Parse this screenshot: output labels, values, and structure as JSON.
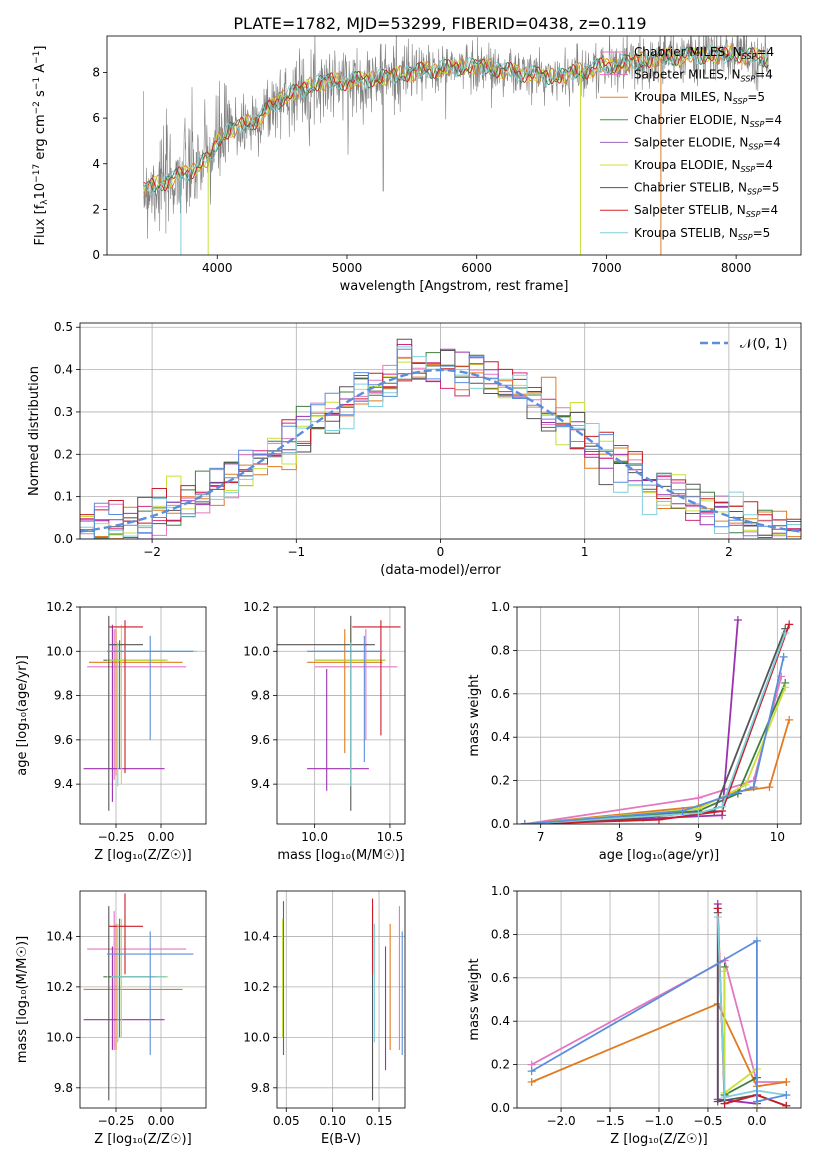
{
  "figure": {
    "title": "PLATE=1782, MJD=53299, FIBERID=0438, z=0.119"
  },
  "legend_entries": [
    {
      "pre": "Chabrier MILES, N",
      "sub": "SSP",
      "post": "=4",
      "color": "#e377c2"
    },
    {
      "pre": "Salpeter MILES, N",
      "sub": "SSP",
      "post": "=4",
      "color": "#e377c2"
    },
    {
      "pre": "Kroupa MILES, N",
      "sub": "SSP",
      "post": "=5",
      "color": "#ff7f0e"
    },
    {
      "pre": "Chabrier ELODIE, N",
      "sub": "SSP",
      "post": "=4",
      "color": "#2ca02c"
    },
    {
      "pre": "Salpeter ELODIE, N",
      "sub": "SSP",
      "post": "=4",
      "color": "#9467bd"
    },
    {
      "pre": "Kroupa ELODIE, N",
      "sub": "SSP",
      "post": "=4",
      "color": "#dbdb3d"
    },
    {
      "pre": "Chabrier STELIB, N",
      "sub": "SSP",
      "post": "=5",
      "color": "#555555"
    },
    {
      "pre": "Salpeter STELIB, N",
      "sub": "SSP",
      "post": "=4",
      "color": "#d62728"
    },
    {
      "pre": "Kroupa STELIB, N",
      "sub": "SSP",
      "post": "=5",
      "color": "#7fd0dc"
    }
  ],
  "colors": {
    "chabrier_miles": "#e377c2",
    "salpeter_miles": "#d6277f",
    "kroupa_miles": "#e07b20",
    "chabrier_elodie": "#3f7f3f",
    "salpeter_elodie": "#9b30b0",
    "kroupa_elodie": "#c8e03a",
    "chabrier_stelib": "#555555",
    "salpeter_stelib": "#c81e28",
    "kroupa_stelib": "#7fd0dc",
    "blue": "#5b8ddb",
    "data": "#808080"
  },
  "chart_data": [
    {
      "id": "spectrum",
      "type": "line",
      "xlabel": "wavelength [Angstrom, rest frame]",
      "ylabel_pre": "Flux [f",
      "ylabel_sub": "λ",
      "ylabel_mid": "10",
      "ylabel_sup1": "−17",
      "ylabel_mid2": " erg cm",
      "ylabel_sup2": "−2",
      "ylabel_mid3": " s",
      "ylabel_sup3": "−1",
      "ylabel_mid4": " A",
      "ylabel_sup4": "−1",
      "ylabel_end": "]",
      "xlim": [
        3150,
        8500
      ],
      "ylim": [
        0,
        9.6
      ],
      "xticks": [
        "4000",
        "5000",
        "6000",
        "7000",
        "8000"
      ],
      "xtick_values": [
        4000,
        5000,
        6000,
        7000,
        8000
      ],
      "yticks": [
        "0",
        "2",
        "4",
        "6",
        "8"
      ],
      "ytick_values": [
        0,
        2,
        4,
        6,
        8
      ],
      "continuum": [
        [
          3430,
          2.9
        ],
        [
          3600,
          3.2
        ],
        [
          3800,
          3.7
        ],
        [
          3950,
          4.3
        ],
        [
          4000,
          5.0
        ],
        [
          4100,
          5.5
        ],
        [
          4300,
          5.9
        ],
        [
          4500,
          6.9
        ],
        [
          4800,
          7.6
        ],
        [
          5000,
          7.6
        ],
        [
          5300,
          7.8
        ],
        [
          5600,
          8.1
        ],
        [
          6000,
          8.3
        ],
        [
          6300,
          8.0
        ],
        [
          6600,
          7.8
        ],
        [
          7000,
          8.3
        ],
        [
          7500,
          8.7
        ],
        [
          8000,
          8.8
        ],
        [
          8250,
          8.6
        ]
      ]
    },
    {
      "id": "residuals",
      "type": "histogram",
      "xlabel": "(data-model)/error",
      "ylabel": "Normed distribution",
      "xlim": [
        -2.5,
        2.5
      ],
      "ylim": [
        0,
        0.51
      ],
      "xticks": [
        "−2",
        "−1",
        "0",
        "1",
        "2"
      ],
      "xtick_values": [
        -2,
        -1,
        0,
        1,
        2
      ],
      "yticks": [
        "0.0",
        "0.1",
        "0.2",
        "0.3",
        "0.4",
        "0.5"
      ],
      "ytick_values": [
        0,
        0.1,
        0.2,
        0.3,
        0.4,
        0.5
      ],
      "legend_label": "𝒩(0, 1)",
      "bin_width": 0.1
    },
    {
      "id": "age_vs_Z",
      "type": "errorbar",
      "xlabel": "Z [log₁₀(Z/Z☉)]",
      "ylabel": "age  [log₁₀(age/yr)]",
      "xlim": [
        -0.45,
        0.25
      ],
      "ylim": [
        9.22,
        10.2
      ],
      "xticks": [
        "−0.25",
        "0.00"
      ],
      "xtick_values": [
        -0.25,
        0.0
      ],
      "yticks": [
        "9.4",
        "9.6",
        "9.8",
        "10.0",
        "10.2"
      ],
      "ytick_values": [
        9.4,
        9.6,
        9.8,
        10.0,
        10.2
      ],
      "points": [
        {
          "x": -0.26,
          "y": 9.93,
          "x0": -0.41,
          "x1": 0.14,
          "y0": 9.42,
          "y1": 10.1,
          "c": "chabrier_miles"
        },
        {
          "x": -0.25,
          "y": 9.95,
          "x0": -0.4,
          "x1": 0.12,
          "y0": 9.44,
          "y1": 10.1,
          "c": "kroupa_miles"
        },
        {
          "x": -0.23,
          "y": 9.96,
          "x0": -0.32,
          "x1": 0.03,
          "y0": 9.47,
          "y1": 10.05,
          "c": "chabrier_elodie"
        },
        {
          "x": -0.27,
          "y": 9.47,
          "x0": -0.43,
          "x1": 0.02,
          "y0": 9.32,
          "y1": 10.12,
          "c": "salpeter_elodie"
        },
        {
          "x": -0.22,
          "y": 9.96,
          "x0": -0.3,
          "x1": 0.04,
          "y0": 9.4,
          "y1": 10.12,
          "c": "kroupa_elodie"
        },
        {
          "x": -0.29,
          "y": 10.03,
          "x0": -0.29,
          "x1": -0.1,
          "y0": 9.28,
          "y1": 10.16,
          "c": "chabrier_stelib"
        },
        {
          "x": -0.2,
          "y": 10.11,
          "x0": -0.29,
          "x1": -0.1,
          "y0": 9.45,
          "y1": 10.14,
          "c": "salpeter_stelib"
        },
        {
          "x": -0.24,
          "y": 10.0,
          "x0": -0.28,
          "x1": 0.2,
          "y0": 9.39,
          "y1": 10.04,
          "c": "kroupa_stelib"
        },
        {
          "x": -0.06,
          "y": 10.0,
          "x0": -0.3,
          "x1": 0.18,
          "y0": 9.6,
          "y1": 10.07,
          "c": "blue"
        }
      ]
    },
    {
      "id": "age_vs_mass",
      "type": "errorbar",
      "xlabel": "mass [log₁₀(M/M☉)]",
      "xlim": [
        9.75,
        10.6
      ],
      "ylim": [
        9.22,
        10.2
      ],
      "xticks": [
        "10.0",
        "10.5"
      ],
      "xtick_values": [
        10.0,
        10.5
      ],
      "yticks": [
        "9.4",
        "9.6",
        "9.8",
        "10.0",
        "10.2"
      ],
      "ytick_values": [
        9.4,
        9.6,
        9.8,
        10.0,
        10.2
      ],
      "points": [
        {
          "x": 10.34,
          "y": 9.93,
          "x0": 10.0,
          "x1": 10.55,
          "y0": 9.6,
          "y1": 10.1,
          "c": "chabrier_miles"
        },
        {
          "x": 10.2,
          "y": 9.95,
          "x0": 9.95,
          "x1": 10.45,
          "y0": 9.54,
          "y1": 10.1,
          "c": "kroupa_miles"
        },
        {
          "x": 10.24,
          "y": 9.96,
          "x0": 10.0,
          "x1": 10.47,
          "y0": 9.45,
          "y1": 10.05,
          "c": "chabrier_elodie"
        },
        {
          "x": 10.08,
          "y": 9.47,
          "x0": 9.95,
          "x1": 10.36,
          "y0": 9.37,
          "y1": 9.92,
          "c": "salpeter_elodie"
        },
        {
          "x": 10.24,
          "y": 9.96,
          "x0": 10.0,
          "x1": 10.47,
          "y0": 9.4,
          "y1": 10.12,
          "c": "kroupa_elodie"
        },
        {
          "x": 10.24,
          "y": 10.03,
          "x0": 9.74,
          "x1": 10.4,
          "y0": 9.28,
          "y1": 10.16,
          "c": "chabrier_stelib"
        },
        {
          "x": 10.44,
          "y": 10.11,
          "x0": 10.25,
          "x1": 10.57,
          "y0": 9.62,
          "y1": 10.14,
          "c": "salpeter_stelib"
        },
        {
          "x": 10.24,
          "y": 10.0,
          "x0": 9.98,
          "x1": 10.45,
          "y0": 9.39,
          "y1": 10.04,
          "c": "kroupa_stelib"
        },
        {
          "x": 10.33,
          "y": 10.0,
          "x0": 9.95,
          "x1": 10.45,
          "y0": 9.5,
          "y1": 10.07,
          "c": "blue"
        }
      ]
    },
    {
      "id": "mass_weight_vs_age",
      "type": "line",
      "xlabel": "age  [log₁₀(age/yr)]",
      "ylabel": "mass weight",
      "xlim": [
        6.7,
        10.3
      ],
      "ylim": [
        0,
        1.0
      ],
      "xticks": [
        "7",
        "8",
        "9",
        "10"
      ],
      "xtick_values": [
        7,
        8,
        9,
        10
      ],
      "yticks": [
        "0.0",
        "0.2",
        "0.4",
        "0.6",
        "0.8",
        "1.0"
      ],
      "ytick_values": [
        0,
        0.2,
        0.4,
        0.6,
        0.8,
        1.0
      ],
      "series": [
        {
          "c": "chabrier_miles",
          "x": [
            6.8,
            9.0,
            9.7,
            10.05
          ],
          "y": [
            0.0,
            0.12,
            0.2,
            0.68
          ]
        },
        {
          "c": "kroupa_miles",
          "x": [
            6.8,
            9.0,
            9.5,
            9.9,
            10.15
          ],
          "y": [
            0.0,
            0.08,
            0.15,
            0.17,
            0.48
          ]
        },
        {
          "c": "chabrier_elodie",
          "x": [
            6.8,
            9.0,
            9.5,
            10.1
          ],
          "y": [
            0.0,
            0.06,
            0.14,
            0.65
          ]
        },
        {
          "c": "salpeter_elodie",
          "x": [
            6.8,
            9.3,
            9.5
          ],
          "y": [
            0.0,
            0.04,
            0.94
          ]
        },
        {
          "c": "kroupa_elodie",
          "x": [
            6.8,
            9.0,
            9.6,
            10.1
          ],
          "y": [
            0.0,
            0.07,
            0.18,
            0.63
          ]
        },
        {
          "c": "chabrier_stelib",
          "x": [
            6.8,
            8.3,
            9.2,
            10.1
          ],
          "y": [
            0.0,
            0.03,
            0.06,
            0.9
          ]
        },
        {
          "c": "salpeter_stelib",
          "x": [
            6.8,
            8.5,
            9.3,
            10.15
          ],
          "y": [
            0.0,
            0.02,
            0.06,
            0.92
          ]
        },
        {
          "c": "kroupa_stelib",
          "x": [
            6.8,
            9.0,
            9.3,
            10.1
          ],
          "y": [
            0.0,
            0.05,
            0.08,
            0.88
          ]
        },
        {
          "c": "blue",
          "x": [
            6.8,
            8.8,
            9.7,
            10.08
          ],
          "y": [
            0.0,
            0.06,
            0.17,
            0.77
          ]
        }
      ]
    },
    {
      "id": "mass_vs_Z",
      "type": "errorbar",
      "xlabel": "Z [log₁₀(Z/Z☉)]",
      "ylabel": "mass [log₁₀(M/M☉)]",
      "xlim": [
        -0.45,
        0.25
      ],
      "ylim": [
        9.72,
        10.58
      ],
      "xticks": [
        "−0.25",
        "0.00"
      ],
      "xtick_values": [
        -0.25,
        0.0
      ],
      "yticks": [
        "9.8",
        "10.0",
        "10.2",
        "10.4"
      ],
      "ytick_values": [
        9.8,
        10.0,
        10.2,
        10.4
      ],
      "points": [
        {
          "x": -0.26,
          "y": 10.35,
          "x0": -0.41,
          "x1": 0.14,
          "y0": 9.95,
          "y1": 10.5,
          "c": "chabrier_miles"
        },
        {
          "x": -0.25,
          "y": 10.19,
          "x0": -0.43,
          "x1": 0.12,
          "y0": 9.95,
          "y1": 10.45,
          "c": "kroupa_miles"
        },
        {
          "x": -0.23,
          "y": 10.24,
          "x0": -0.32,
          "x1": 0.03,
          "y0": 10.0,
          "y1": 10.47,
          "c": "chabrier_elodie"
        },
        {
          "x": -0.27,
          "y": 10.07,
          "x0": -0.43,
          "x1": 0.02,
          "y0": 9.95,
          "y1": 10.36,
          "c": "salpeter_elodie"
        },
        {
          "x": -0.22,
          "y": 10.24,
          "x0": -0.3,
          "x1": 0.04,
          "y0": 10.0,
          "y1": 10.47,
          "c": "kroupa_elodie"
        },
        {
          "x": -0.29,
          "y": 10.24,
          "x0": -0.29,
          "x1": -0.03,
          "y0": 9.75,
          "y1": 10.52,
          "c": "chabrier_stelib"
        },
        {
          "x": -0.2,
          "y": 10.44,
          "x0": -0.29,
          "x1": -0.1,
          "y0": 10.25,
          "y1": 10.57,
          "c": "salpeter_stelib"
        },
        {
          "x": -0.24,
          "y": 10.24,
          "x0": -0.28,
          "x1": 0.03,
          "y0": 9.98,
          "y1": 10.45,
          "c": "kroupa_stelib"
        },
        {
          "x": -0.06,
          "y": 10.33,
          "x0": -0.3,
          "x1": 0.18,
          "y0": 9.93,
          "y1": 10.42,
          "c": "blue"
        }
      ]
    },
    {
      "id": "mass_vs_ebv",
      "type": "errorbar",
      "xlabel": "E(B-V)",
      "xlim": [
        0.04,
        0.178
      ],
      "ylim": [
        9.72,
        10.58
      ],
      "xticks": [
        "0.05",
        "0.10",
        "0.15"
      ],
      "xtick_values": [
        0.05,
        0.1,
        0.15
      ],
      "yticks": [
        "9.8",
        "10.0",
        "10.2",
        "10.4"
      ],
      "ytick_values": [
        9.8,
        10.0,
        10.2,
        10.4
      ],
      "points": [
        {
          "x": 0.172,
          "y": 10.35,
          "y0": 9.95,
          "y1": 10.52,
          "c": "chabrier_miles"
        },
        {
          "x": 0.162,
          "y": 10.19,
          "y0": 9.95,
          "y1": 10.45,
          "c": "kroupa_miles"
        },
        {
          "x": 0.047,
          "y": 10.24,
          "y0": 9.93,
          "y1": 10.54,
          "c": "chabrier_elodie"
        },
        {
          "x": 0.157,
          "y": 10.07,
          "y0": 9.87,
          "y1": 10.36,
          "c": "salpeter_elodie"
        },
        {
          "x": 0.046,
          "y": 10.24,
          "y0": 10.0,
          "y1": 10.47,
          "c": "kroupa_elodie"
        },
        {
          "x": 0.143,
          "y": 10.24,
          "y0": 9.75,
          "y1": 10.52,
          "c": "chabrier_stelib"
        },
        {
          "x": 0.143,
          "y": 10.44,
          "y0": 10.25,
          "y1": 10.55,
          "c": "salpeter_stelib"
        },
        {
          "x": 0.145,
          "y": 10.24,
          "y0": 9.98,
          "y1": 10.45,
          "c": "kroupa_stelib"
        },
        {
          "x": 0.175,
          "y": 10.33,
          "y0": 9.93,
          "y1": 10.42,
          "c": "blue"
        }
      ]
    },
    {
      "id": "mass_weight_vs_Z",
      "type": "line",
      "xlabel": "Z [log₁₀(Z/Z☉)]",
      "ylabel": "mass weight",
      "xlim": [
        -2.45,
        0.45
      ],
      "ylim": [
        0,
        1.0
      ],
      "xticks": [
        "−2.0",
        "−1.5",
        "−1.0",
        "−0.5",
        "0.0"
      ],
      "xtick_values": [
        -2.0,
        -1.5,
        -1.0,
        -0.5,
        0.0
      ],
      "yticks": [
        "0.0",
        "0.2",
        "0.4",
        "0.6",
        "0.8",
        "1.0"
      ],
      "ytick_values": [
        0,
        0.2,
        0.4,
        0.6,
        0.8,
        1.0
      ],
      "series": [
        {
          "c": "chabrier_miles",
          "x": [
            -2.3,
            -0.33,
            0.0,
            0.3
          ],
          "y": [
            0.2,
            0.68,
            0.12,
            0.12
          ]
        },
        {
          "c": "kroupa_miles",
          "x": [
            -2.3,
            -0.4,
            0.0,
            0.3
          ],
          "y": [
            0.12,
            0.48,
            0.1,
            0.12
          ]
        },
        {
          "c": "chabrier_elodie",
          "x": [
            -0.33,
            -0.33,
            0.0,
            0.0
          ],
          "y": [
            0.65,
            0.06,
            0.14,
            0.0
          ]
        },
        {
          "c": "salpeter_elodie",
          "x": [
            -0.4,
            -0.4,
            0.0,
            0.0
          ],
          "y": [
            0.94,
            0.04,
            0.02,
            0.0
          ]
        },
        {
          "c": "kroupa_elodie",
          "x": [
            -0.33,
            -0.33,
            0.0,
            0.0
          ],
          "y": [
            0.63,
            0.07,
            0.18,
            0.0
          ]
        },
        {
          "c": "chabrier_stelib",
          "x": [
            -0.4,
            -0.4,
            0.0,
            0.3
          ],
          "y": [
            0.9,
            0.03,
            0.06,
            0.01
          ]
        },
        {
          "c": "salpeter_stelib",
          "x": [
            -0.4,
            -0.33,
            0.0,
            0.3
          ],
          "y": [
            0.92,
            0.02,
            0.06,
            0.01
          ]
        },
        {
          "c": "kroupa_stelib",
          "x": [
            -0.4,
            -0.33,
            0.0,
            0.3
          ],
          "y": [
            0.88,
            0.05,
            0.08,
            0.06
          ]
        },
        {
          "c": "blue",
          "x": [
            -2.3,
            0.0,
            0.0,
            0.3
          ],
          "y": [
            0.17,
            0.77,
            0.03,
            0.06
          ]
        }
      ]
    }
  ]
}
